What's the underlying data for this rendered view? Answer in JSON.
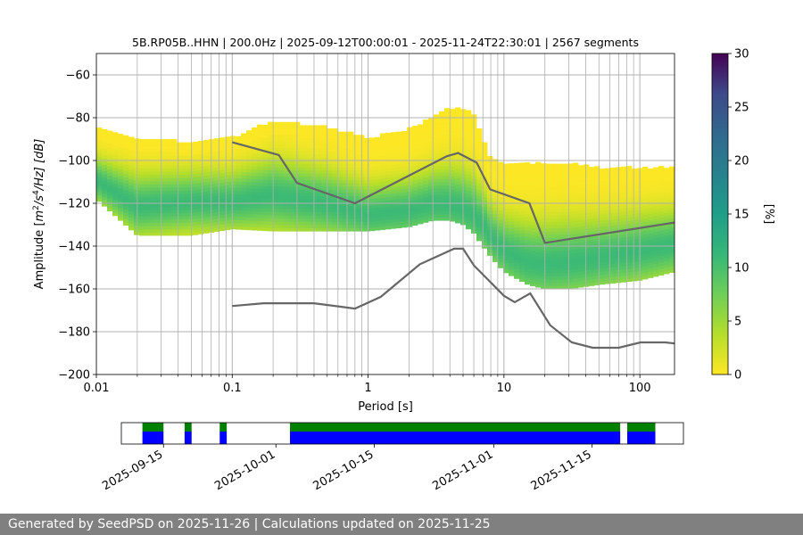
{
  "chart_data": [
    {
      "type": "heatmap",
      "title": "5B.RP05B..HHN | 200.0Hz | 2025-09-12T00:00:01 - 2025-11-24T22:30:01 | 2567 segments",
      "xlabel": "Period [s]",
      "ylabel_parts": {
        "prefix": "Amplitude [",
        "m": "m",
        "exp1": "2",
        "mid": "/s",
        "exp2": "4",
        "suffix": "/Hz] [dB]"
      },
      "x_scale": "log",
      "xlim": [
        0.01,
        180
      ],
      "ylim": [
        -200,
        -50
      ],
      "x_ticks": [
        {
          "value": 0.01,
          "label": "0.01"
        },
        {
          "value": 0.1,
          "label": "0.1"
        },
        {
          "value": 1,
          "label": "1"
        },
        {
          "value": 10,
          "label": "10"
        },
        {
          "value": 100,
          "label": "100"
        }
      ],
      "y_ticks": [
        {
          "value": -60,
          "label": "−60"
        },
        {
          "value": -80,
          "label": "−80"
        },
        {
          "value": -100,
          "label": "−100"
        },
        {
          "value": -120,
          "label": "−120"
        },
        {
          "value": -140,
          "label": "−140"
        },
        {
          "value": -160,
          "label": "−160"
        },
        {
          "value": -180,
          "label": "−180"
        },
        {
          "value": -200,
          "label": "−200"
        }
      ],
      "grid": true,
      "colormap": "viridis_r",
      "colorbar": {
        "label": "[%]",
        "range": [
          0,
          30
        ],
        "ticks": [
          {
            "value": 0,
            "label": "0"
          },
          {
            "value": 5,
            "label": "5"
          },
          {
            "value": 10,
            "label": "10"
          },
          {
            "value": 15,
            "label": "15"
          },
          {
            "value": 20,
            "label": "20"
          },
          {
            "value": 25,
            "label": "25"
          },
          {
            "value": 30,
            "label": "30"
          }
        ]
      },
      "density_band": {
        "x": [
          0.01,
          0.02,
          0.05,
          0.1,
          0.2,
          0.5,
          1,
          2,
          3,
          4,
          5,
          6,
          7,
          8,
          10,
          15,
          20,
          30,
          50,
          100,
          180
        ],
        "p_high": [
          -85,
          -90,
          -92,
          -90,
          -82,
          -85,
          -90,
          -86,
          -80,
          -76,
          -76,
          -80,
          -90,
          -100,
          -102,
          -102,
          -102,
          -102,
          -104,
          -104,
          -104
        ],
        "p_low": [
          -118,
          -135,
          -135,
          -132,
          -133,
          -133,
          -133,
          -131,
          -128,
          -128,
          -130,
          -134,
          -140,
          -145,
          -152,
          -158,
          -160,
          -160,
          -158,
          -156,
          -152
        ],
        "mode": [
          -110,
          -122,
          -120,
          -120,
          -117,
          -121,
          -126,
          -124,
          -121,
          -121,
          -123,
          -126,
          -131,
          -136,
          -143,
          -148,
          -149,
          -148,
          -146,
          -143,
          -140
        ]
      },
      "series": [
        {
          "x": [
            0.1,
            0.22,
            0.3,
            0.8,
            3.8,
            4.6,
            6.3,
            7.9,
            15.4,
            20,
            180
          ],
          "y": [
            -91.5,
            -97.4,
            -110.5,
            -120,
            -98,
            -96.5,
            -101,
            -113.5,
            -120,
            -138.5,
            -129
          ]
        },
        {
          "x": [
            0.1,
            0.17,
            0.4,
            0.8,
            1.24,
            2.4,
            4.3,
            5,
            6,
            10,
            12,
            15.6,
            21.9,
            31.6,
            45,
            70,
            101,
            154,
            180
          ],
          "y": [
            -168,
            -166.7,
            -166.7,
            -169.2,
            -163.7,
            -148.5,
            -141.2,
            -141.2,
            -149,
            -163.2,
            -166.2,
            -162.1,
            -177,
            -185,
            -187.5,
            -187.5,
            -185,
            -185,
            -185.5
          ]
        }
      ]
    },
    {
      "type": "timeline",
      "ticks": [
        {
          "date": "2025-09-15",
          "label": "2025-09-15"
        },
        {
          "date": "2025-10-01",
          "label": "2025-10-01"
        },
        {
          "date": "2025-10-15",
          "label": "2025-10-15"
        },
        {
          "date": "2025-11-01",
          "label": "2025-11-01"
        },
        {
          "date": "2025-11-15",
          "label": "2025-11-15"
        }
      ],
      "xlim": [
        "2025-09-09",
        "2025-11-28"
      ],
      "available_data_spans": [
        [
          "2025-09-12",
          "2025-09-15"
        ],
        [
          "2025-09-18",
          "2025-09-19"
        ],
        [
          "2025-09-23",
          "2025-09-24"
        ],
        [
          "2025-10-03",
          "2025-11-19"
        ],
        [
          "2025-11-20",
          "2025-11-24"
        ]
      ],
      "colors": {
        "top_band": "#008000",
        "bottom_band": "#0000ff"
      }
    }
  ],
  "footer": {
    "text": "Generated by SeedPSD on 2025-11-26 | Calculations updated on 2025-11-25"
  },
  "colors": {
    "reference_lines": "#666666",
    "grid": "#b0b0b0",
    "footer_bg": "#808080"
  }
}
